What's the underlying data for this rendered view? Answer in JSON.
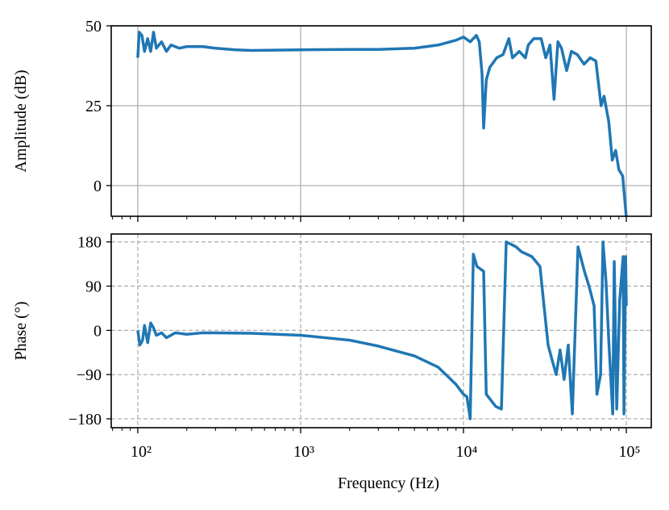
{
  "chart_data": [
    {
      "type": "line",
      "ylabel": "Amplitude (dB)",
      "xscale": "log",
      "grid": true,
      "grid_style": "solid",
      "color": "#1f77b4",
      "show_xtick_labels": false,
      "xlim": [
        68.7,
        142300
      ],
      "xticks": [
        100,
        1000,
        10000,
        100000
      ],
      "ylim": [
        -9.6,
        50
      ],
      "yticks": [
        50,
        25,
        0
      ],
      "x": [
        100,
        102,
        106,
        110,
        115,
        120,
        125,
        130,
        140,
        150,
        160,
        180,
        200,
        250,
        300,
        400,
        500,
        700,
        1000,
        2000,
        3000,
        5000,
        7000,
        9000,
        10000,
        11000,
        12000,
        12500,
        13000,
        13300,
        13800,
        14500,
        16000,
        17500,
        19000,
        20000,
        22000,
        24000,
        25000,
        27000,
        30000,
        32000,
        34000,
        36000,
        38000,
        40000,
        43000,
        46000,
        50000,
        55000,
        60000,
        65000,
        70000,
        73000,
        78000,
        82000,
        86000,
        90000,
        95000,
        100000
      ],
      "values": [
        40,
        48,
        47,
        42,
        46,
        42,
        48,
        43,
        45,
        42,
        44,
        43,
        43.5,
        43.5,
        43,
        42.5,
        42.3,
        42.4,
        42.5,
        42.6,
        42.6,
        43,
        44,
        45.5,
        46.5,
        45,
        47,
        45,
        35,
        18,
        33,
        37,
        40,
        41,
        46,
        40,
        42,
        40,
        44,
        46,
        46,
        40,
        44,
        27,
        45,
        43,
        36,
        42,
        41,
        38,
        40,
        39,
        25,
        28,
        20,
        8,
        11,
        5,
        3,
        -10
      ]
    },
    {
      "type": "line",
      "ylabel": "Phase (°)",
      "xlabel": "Frequency (Hz)",
      "xscale": "log",
      "grid": true,
      "grid_style": "dashed",
      "color": "#1f77b4",
      "show_xtick_labels": true,
      "xlim": [
        68.7,
        142300
      ],
      "xticks": [
        {
          "value": 100,
          "label": "10²"
        },
        {
          "value": 1000,
          "label": "10³"
        },
        {
          "value": 10000,
          "label": "10⁴"
        },
        {
          "value": 100000,
          "label": "10⁵"
        }
      ],
      "ylim": [
        -198,
        196
      ],
      "yticks": [
        180,
        90,
        0,
        {
          "value": -90,
          "label": "−90"
        },
        {
          "value": -180,
          "label": "−180"
        }
      ],
      "x": [
        100,
        103,
        107,
        110,
        115,
        120,
        125,
        130,
        140,
        150,
        170,
        200,
        250,
        300,
        500,
        1000,
        2000,
        3000,
        5000,
        7000,
        9000,
        10000,
        10500,
        11000,
        11500,
        12100,
        12700,
        13300,
        13800,
        15800,
        17100,
        18300,
        21000,
        22700,
        26300,
        29500,
        31000,
        33100,
        35000,
        37100,
        39200,
        41500,
        44000,
        46600,
        50500,
        55300,
        59000,
        63400,
        66000,
        69500,
        71900,
        75000,
        78000,
        82500,
        84300,
        87300,
        91000,
        95600,
        96700,
        99000,
        100000
      ],
      "values": [
        0,
        -30,
        -20,
        10,
        -25,
        15,
        5,
        -10,
        -5,
        -15,
        -5,
        -8,
        -5,
        -5,
        -6,
        -10,
        -20,
        -32,
        -52,
        -75,
        -110,
        -130,
        -135,
        -180,
        155,
        130,
        125,
        120,
        -130,
        -155,
        -160,
        180,
        170,
        160,
        150,
        130,
        60,
        -30,
        -60,
        -90,
        -40,
        -100,
        -30,
        -170,
        170,
        120,
        90,
        50,
        -130,
        -90,
        180,
        100,
        -20,
        -170,
        140,
        -160,
        60,
        150,
        -170,
        150,
        50
      ]
    }
  ]
}
